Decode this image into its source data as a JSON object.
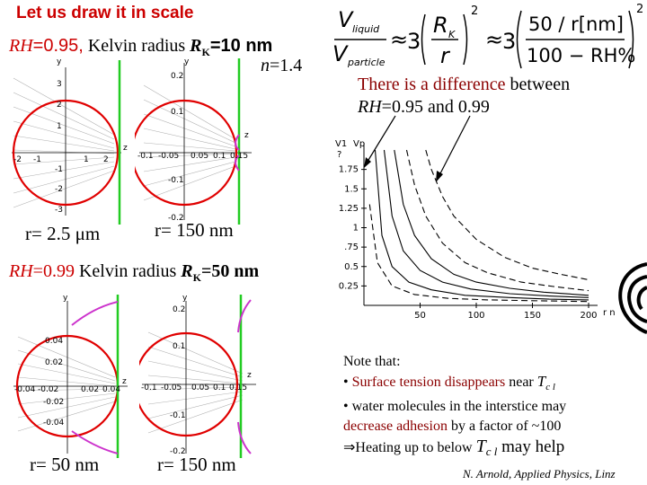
{
  "slide": {
    "title": "Let us draw it in scale",
    "rh95_line": {
      "rh": "RH",
      "eq": "=0.95,",
      "kelvin": " Kelvin radius ",
      "rk": "R",
      "rk_sub": "K",
      "rk_val": "=10 nm"
    },
    "n_label": {
      "n": "n",
      "val": "=1.4"
    },
    "difference": {
      "line1_hl": "There is a difference",
      "line1_rest": " between",
      "line2_rh": "RH",
      "line2_rest": "=0.95 and 0.99"
    },
    "rh99_line": {
      "rh": "RH",
      "eq": "=0.99",
      "kelvin": " Kelvin radius ",
      "rk": "R",
      "rk_sub": "K",
      "rk_val": "=50 nm"
    },
    "r_labels": {
      "r1": "r= 2.5 μm",
      "r2": "r= 150 nm",
      "r3": "r= 50 nm",
      "r4": "r= 150 nm"
    },
    "note": {
      "heading": "Note that:",
      "b1_pre": "• ",
      "b1_hl": "Surface tension disappears",
      "b1_rest": " near ",
      "tcl": "T",
      "tcl_sub": "c l",
      "b2": "• water molecules in the interstice may",
      "b3_hl": "decrease adhesion",
      "b3_rest": " by a factor of ~100",
      "b4_pre": "⇒Heating up to below ",
      "b4_end": " may help"
    },
    "credit": "N. Arnold, Applied Physics, Linz"
  },
  "formula": {
    "v_liquid": "V",
    "v_liquid_sub": "liquid",
    "v_particle": "V",
    "v_particle_sub": "particle",
    "approx": "≈",
    "three": "3",
    "rk": "R",
    "rk_sub": "K",
    "r": "r",
    "exp": "2",
    "frac2_num": "50 / r[nm]",
    "frac2_den": "100 − RH%"
  },
  "plot_panels": {
    "p1": {
      "y_axis": "y",
      "z_axis": "z",
      "y_ticks": [
        "3",
        "2",
        "1",
        "-1",
        "-2",
        "-3"
      ],
      "z_ticks": [
        "-2",
        "-1",
        "1",
        "2"
      ]
    },
    "p2": {
      "y_axis": "y",
      "z_axis": "z",
      "y_ticks": [
        "0.2",
        "0.1",
        "-0.1",
        "-0.2"
      ],
      "z_ticks": [
        "-0.1",
        "-0.05",
        "0.05",
        "0.1",
        "0.15"
      ]
    },
    "p3": {
      "y_axis": "y",
      "z_axis": "z",
      "y_ticks": [
        "0.04",
        "0.02",
        "-0.02",
        "-0.04"
      ],
      "z_ticks": [
        "-0.04",
        "-0.02",
        "0.02",
        "0.04"
      ]
    },
    "p4": {
      "y_axis": "y",
      "z_axis": "z",
      "y_ticks": [
        "0.2",
        "0.1",
        "-0.1",
        "-0.2"
      ],
      "z_ticks": [
        "-0.1",
        "-0.05",
        "0.05",
        "0.1",
        "0.15"
      ]
    }
  },
  "chart_data": {
    "type": "line",
    "title": "",
    "xlabel": "r nm",
    "ylabel": "V1/Vp",
    "y_label_parts": {
      "num": "V1",
      "den": "Vp",
      "q": "?"
    },
    "xlim": [
      0,
      200
    ],
    "ylim": [
      0,
      2
    ],
    "x_ticks": [
      50,
      100,
      150,
      200
    ],
    "y_ticks": [
      0.25,
      0.5,
      0.75,
      1,
      1.25,
      1.5,
      1.75
    ],
    "x_tick_labels": [
      "50",
      "100",
      "150",
      "200"
    ],
    "y_tick_labels": [
      "0.25",
      "0.5",
      ".75",
      "1",
      "1.25",
      "1.5",
      "1.75"
    ],
    "series": [
      {
        "style": "dashed",
        "x": [
          55,
          60,
          70,
          80,
          100,
          125,
          150,
          175,
          200
        ],
        "y": [
          2.0,
          1.75,
          1.4,
          1.15,
          0.85,
          0.62,
          0.48,
          0.4,
          0.33
        ]
      },
      {
        "style": "dashed",
        "x": [
          38,
          45,
          55,
          70,
          90,
          110,
          140,
          170,
          200
        ],
        "y": [
          2.0,
          1.55,
          1.15,
          0.8,
          0.55,
          0.42,
          0.3,
          0.24,
          0.19
        ]
      },
      {
        "style": "solid",
        "x": [
          27,
          35,
          45,
          60,
          80,
          100,
          130,
          160,
          200
        ],
        "y": [
          2.0,
          1.3,
          0.9,
          0.6,
          0.4,
          0.3,
          0.22,
          0.17,
          0.13
        ]
      },
      {
        "style": "solid",
        "x": [
          18,
          25,
          35,
          50,
          70,
          95,
          130,
          165,
          200
        ],
        "y": [
          2.0,
          1.15,
          0.7,
          0.45,
          0.3,
          0.21,
          0.15,
          0.12,
          0.1
        ]
      },
      {
        "style": "solid",
        "x": [
          10,
          16,
          25,
          40,
          60,
          90,
          130,
          165,
          200
        ],
        "y": [
          2.0,
          0.9,
          0.5,
          0.3,
          0.2,
          0.13,
          0.1,
          0.08,
          0.07
        ]
      },
      {
        "style": "dashed",
        "x": [
          5,
          12,
          25,
          45,
          75,
          110,
          150,
          200
        ],
        "y": [
          1.3,
          0.55,
          0.25,
          0.14,
          0.09,
          0.07,
          0.06,
          0.05
        ]
      }
    ]
  }
}
